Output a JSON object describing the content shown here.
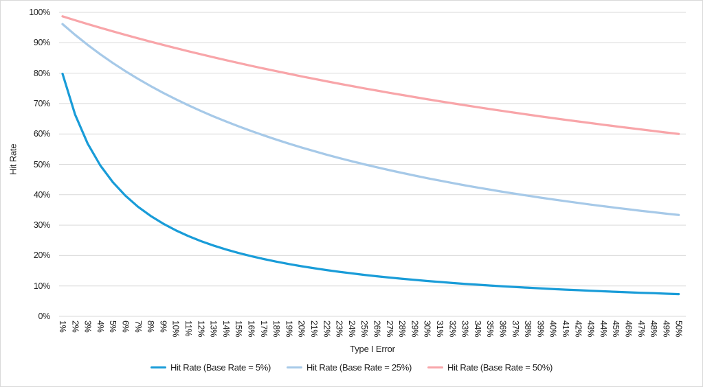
{
  "chart_data": {
    "type": "line",
    "title": "",
    "xlabel": "Type I Error",
    "ylabel": "Hit Rate",
    "ylim": [
      0,
      100
    ],
    "grid": "horizontal",
    "legend_position": "bottom",
    "gridline_color": "#d9d9d9",
    "text_color": "#212121",
    "y_tick_labels": [
      "0%",
      "10%",
      "20%",
      "30%",
      "40%",
      "50%",
      "60%",
      "70%",
      "80%",
      "90%",
      "100%"
    ],
    "categories": [
      "1%",
      "2%",
      "3%",
      "4%",
      "5%",
      "6%",
      "7%",
      "8%",
      "9%",
      "10%",
      "11%",
      "12%",
      "13%",
      "14%",
      "15%",
      "16%",
      "17%",
      "18%",
      "19%",
      "20%",
      "21%",
      "22%",
      "23%",
      "24%",
      "25%",
      "26%",
      "27%",
      "28%",
      "29%",
      "30%",
      "31%",
      "32%",
      "33%",
      "34%",
      "35%",
      "36%",
      "37%",
      "38%",
      "39%",
      "40%",
      "41%",
      "42%",
      "43%",
      "44%",
      "45%",
      "46%",
      "47%",
      "48%",
      "49%",
      "50%"
    ],
    "series": [
      {
        "name": "Hit Rate (Base Rate = 5%)",
        "color": "#199cd8",
        "values": [
          79.79,
          66.37,
          56.82,
          49.67,
          44.12,
          39.68,
          36.06,
          33.04,
          30.49,
          28.3,
          26.41,
          24.75,
          23.29,
          21.99,
          20.83,
          19.79,
          18.84,
          17.99,
          17.2,
          16.48,
          15.82,
          15.21,
          14.65,
          14.12,
          13.64,
          13.18,
          12.76,
          12.36,
          11.98,
          11.63,
          11.3,
          10.98,
          10.68,
          10.4,
          10.14,
          9.88,
          9.64,
          9.41,
          9.19,
          8.98,
          8.78,
          8.59,
          8.41,
          8.23,
          8.06,
          7.9,
          7.75,
          7.6,
          7.46,
          7.32
        ]
      },
      {
        "name": "Hit Rate (Base Rate = 25%)",
        "color": "#a6c9e8",
        "values": [
          96.15,
          92.59,
          89.29,
          86.21,
          83.33,
          80.65,
          78.13,
          75.76,
          73.53,
          71.43,
          69.44,
          67.57,
          65.79,
          64.1,
          62.5,
          60.98,
          59.52,
          58.14,
          56.82,
          55.56,
          54.35,
          53.19,
          52.08,
          51.02,
          50.0,
          49.02,
          48.08,
          47.17,
          46.3,
          45.45,
          44.64,
          43.86,
          43.1,
          42.37,
          41.67,
          40.98,
          40.32,
          39.68,
          39.06,
          38.46,
          37.88,
          37.31,
          36.76,
          36.23,
          35.71,
          35.21,
          34.72,
          34.25,
          33.78,
          33.33
        ]
      },
      {
        "name": "Hit Rate (Base Rate = 50%)",
        "color": "#f8a5a9",
        "values": [
          98.68,
          97.4,
          96.15,
          94.94,
          93.75,
          92.59,
          91.46,
          90.36,
          89.29,
          88.24,
          87.21,
          86.21,
          85.23,
          84.27,
          83.33,
          82.42,
          81.52,
          80.65,
          79.79,
          78.95,
          78.13,
          77.32,
          76.53,
          75.76,
          75.0,
          74.26,
          73.53,
          72.82,
          72.12,
          71.43,
          70.75,
          70.09,
          69.44,
          68.81,
          68.18,
          67.57,
          66.96,
          66.37,
          65.79,
          65.22,
          64.66,
          64.1,
          63.56,
          63.03,
          62.5,
          61.98,
          61.48,
          60.98,
          60.48,
          60.0
        ]
      }
    ]
  }
}
